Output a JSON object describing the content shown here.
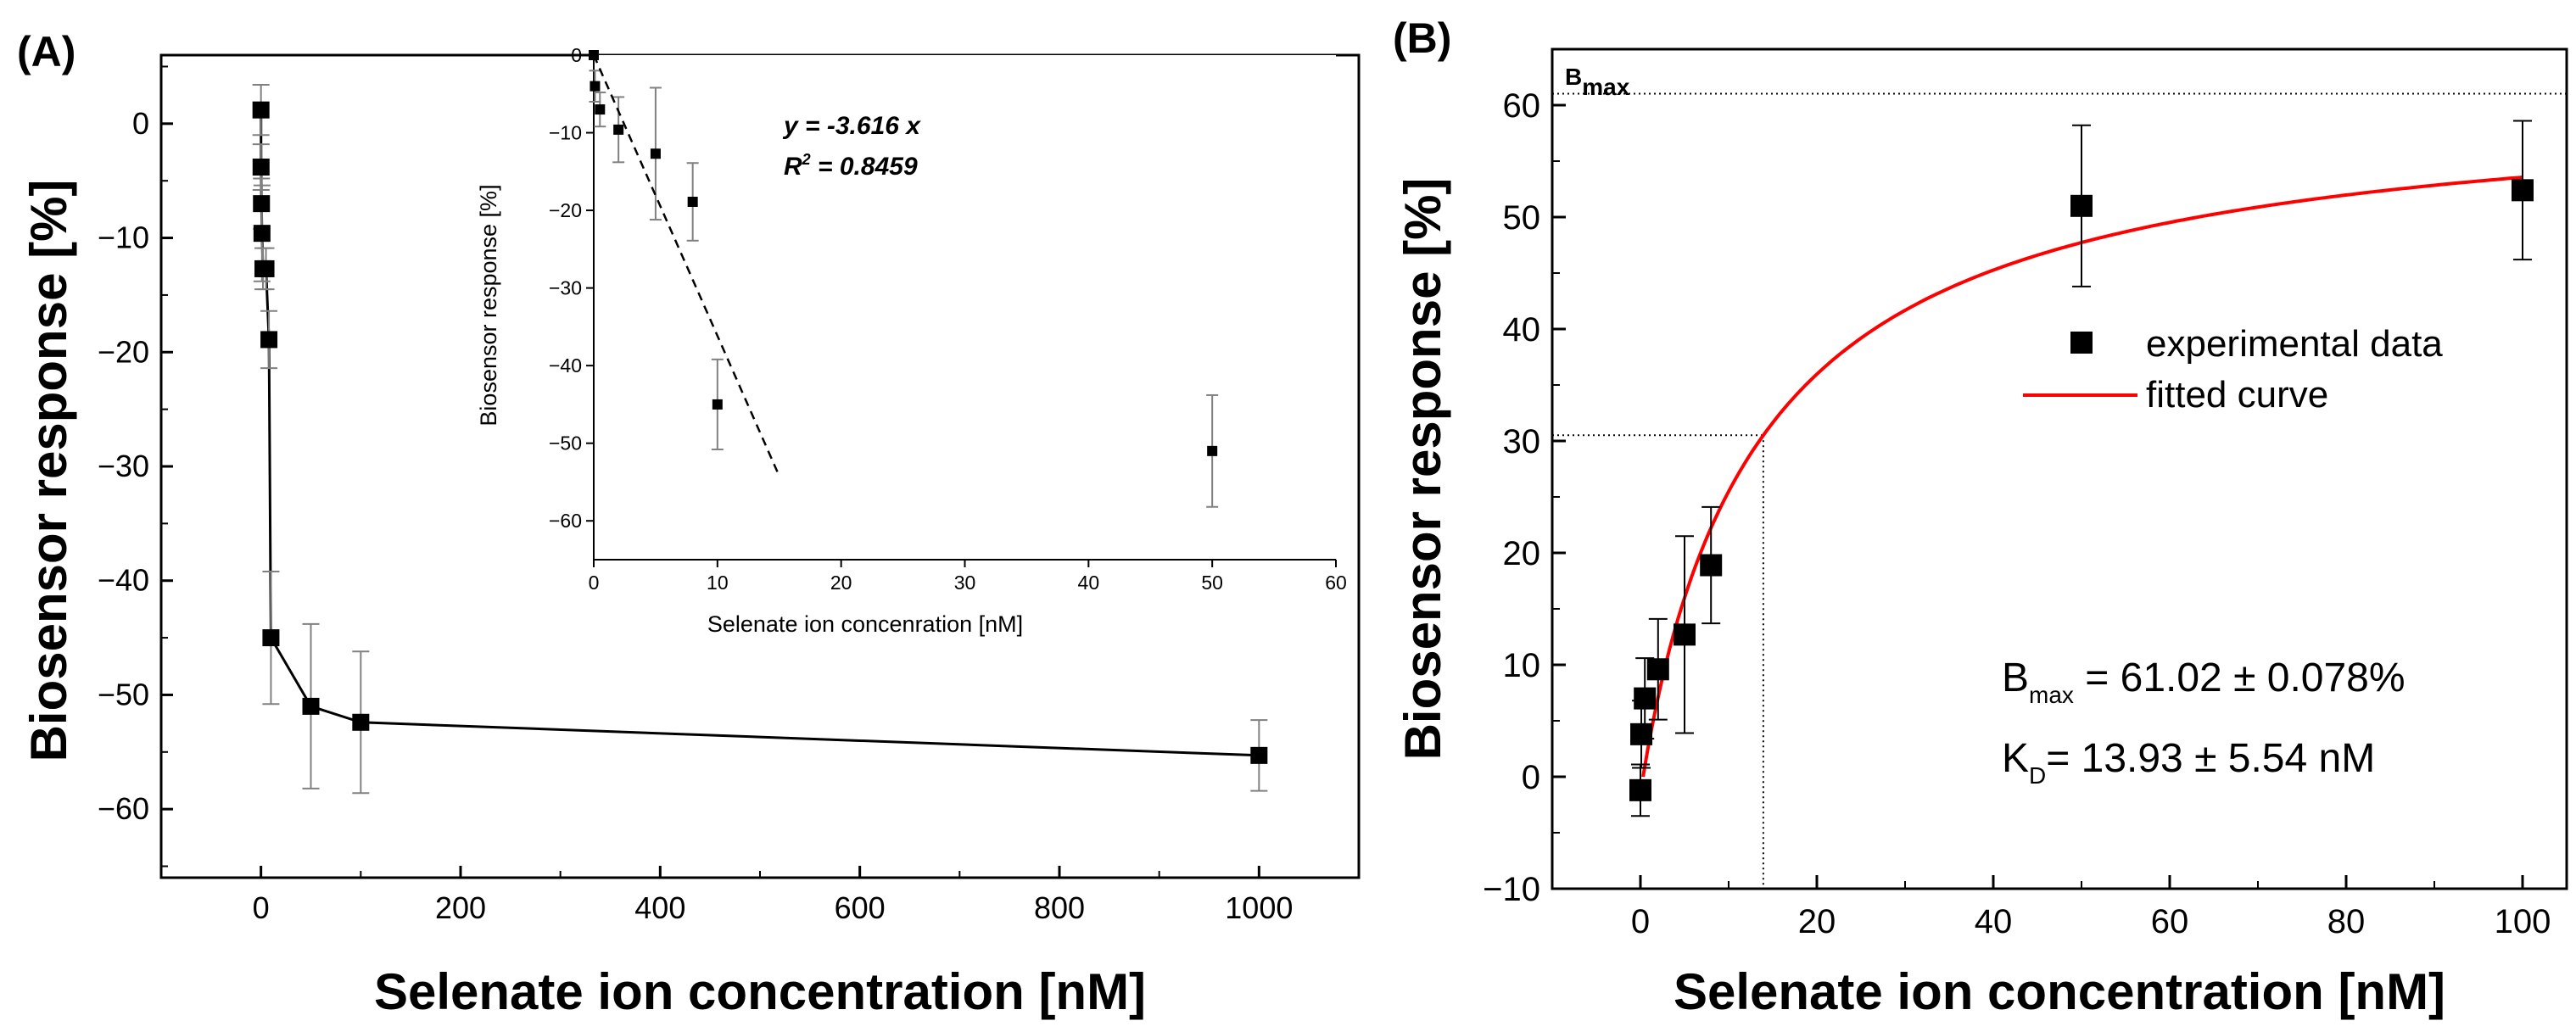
{
  "chart_data": [
    {
      "panel_label": "(A)",
      "type": "line",
      "xlabel": "Selenate ion concentration [nM]",
      "ylabel": "Biosensor response [%]",
      "xlim": [
        -100,
        1100
      ],
      "ylim": [
        -66,
        6
      ],
      "xticks": [
        0,
        200,
        400,
        600,
        800,
        1000
      ],
      "yticks": [
        0,
        -10,
        -20,
        -30,
        -40,
        -50,
        -60
      ],
      "series": [
        {
          "name": "experimental data",
          "x": [
            0,
            0.1,
            0.5,
            1,
            2,
            5,
            8,
            10,
            50,
            100,
            1000
          ],
          "y": [
            1.2,
            -3.8,
            -7.0,
            -9.6,
            -12.7,
            -12.7,
            -18.9,
            -45.0,
            -51.0,
            -52.4,
            -55.3
          ],
          "err": [
            2.2,
            2.0,
            2.2,
            4.2,
            1.8,
            1.8,
            2.5,
            5.8,
            7.2,
            6.2,
            3.1
          ]
        }
      ],
      "inset": {
        "xlabel": "Selenate ion concenration [nM]",
        "ylabel": "Biosensor response [%]",
        "xlim": [
          0,
          60
        ],
        "ylim": [
          -65,
          0
        ],
        "xticks": [
          0,
          10,
          20,
          30,
          40,
          50,
          60
        ],
        "yticks": [
          0,
          -10,
          -20,
          -30,
          -40,
          -50,
          -60
        ],
        "fit_equation": "y = -3.616 x",
        "r2_prefix": "R",
        "r2_sup": "2",
        "r2_value": " = 0.8459",
        "fit_slope": -3.616,
        "fit_xmax": 15,
        "series": [
          {
            "name": "experimental data",
            "x": [
              0,
              0.1,
              0.5,
              2,
              5,
              8,
              10,
              50
            ],
            "y": [
              0,
              -4.0,
              -7.0,
              -9.6,
              -12.7,
              -18.9,
              -45.0,
              -51.0
            ],
            "err": [
              0,
              2.0,
              2.2,
              4.2,
              8.5,
              5.0,
              5.8,
              7.2
            ]
          }
        ]
      }
    },
    {
      "panel_label": "(B)",
      "type": "scatter",
      "xlabel": "Selenate ion concentration [nM]",
      "ylabel": "Biosensor response [%]",
      "xlim": [
        -10,
        105
      ],
      "ylim": [
        -10,
        65
      ],
      "xticks": [
        0,
        20,
        40,
        60,
        80,
        100
      ],
      "yticks": [
        -10,
        0,
        10,
        20,
        30,
        40,
        50,
        60
      ],
      "series": [
        {
          "name": "experimental data",
          "x": [
            0,
            0.1,
            0.5,
            2,
            5,
            8,
            50,
            100
          ],
          "y": [
            -1.2,
            3.8,
            7.0,
            9.6,
            12.7,
            18.9,
            51.0,
            52.4
          ],
          "err": [
            2.3,
            3.0,
            3.6,
            4.5,
            8.8,
            5.2,
            7.2,
            6.2
          ]
        },
        {
          "name": "fitted curve",
          "model": "Bmax*x/(KD+x)",
          "Bmax": 61.02,
          "KD": 13.93,
          "color": "#ff0000"
        }
      ],
      "bmax_line_y": 61.02,
      "half_bmax_y": 30.51,
      "kd_x": 13.93,
      "bmax_main": "B",
      "bmax_sub": "max",
      "legend": {
        "marker_label": "experimental data",
        "line_label": "fitted curve"
      },
      "params": {
        "bmax_symbol": "B",
        "bmax_sub": "max",
        "bmax_value": " = 61.02 ± 0.078%",
        "kd_symbol": "K",
        "kd_sub": "D",
        "kd_value": "= 13.93 ± 5.54 nM"
      }
    }
  ],
  "colors": {
    "fit": "#ff0000",
    "marker": "#000000",
    "errorbar": "#808080"
  }
}
